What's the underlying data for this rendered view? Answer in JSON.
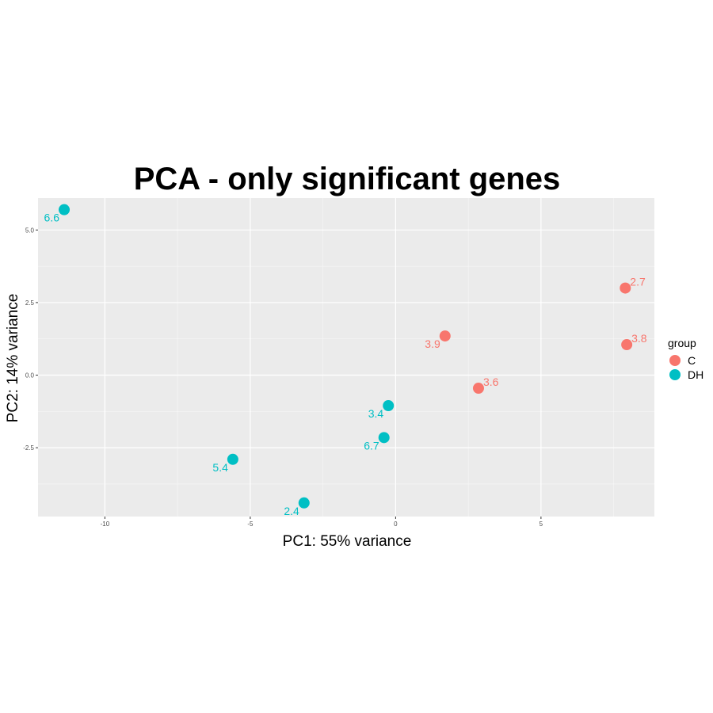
{
  "chart_data": {
    "type": "scatter",
    "title": "PCA - only significant genes",
    "xlabel": "PC1: 55% variance",
    "ylabel": "PC2: 14% variance",
    "xlim": [
      -12.3,
      8.9
    ],
    "ylim": [
      -4.87,
      6.1
    ],
    "x_ticks": [
      -10,
      -5,
      0,
      5
    ],
    "x_tick_labels": [
      "-10",
      "-5",
      "0",
      "5"
    ],
    "y_ticks": [
      -2.5,
      0,
      2.5,
      5
    ],
    "y_tick_labels": [
      "-2.5",
      "0.0",
      "2.5",
      "5.0"
    ],
    "grid": true,
    "legend_position": "right",
    "legend_title": "group",
    "series": [
      {
        "name": "C",
        "color": "#F8766D",
        "points": [
          {
            "x": 7.9,
            "y": 3.0,
            "label": "2.7"
          },
          {
            "x": 7.95,
            "y": 1.05,
            "label": "3.8"
          },
          {
            "x": 1.7,
            "y": 1.35,
            "label": "3.9"
          },
          {
            "x": 2.85,
            "y": -0.45,
            "label": "3.6"
          }
        ]
      },
      {
        "name": "DH",
        "color": "#00BFC4",
        "points": [
          {
            "x": -11.4,
            "y": 5.7,
            "label": "6.6"
          },
          {
            "x": -0.25,
            "y": -1.05,
            "label": "3.4"
          },
          {
            "x": -0.4,
            "y": -2.15,
            "label": "6.7"
          },
          {
            "x": -5.6,
            "y": -2.9,
            "label": "5.4"
          },
          {
            "x": -3.15,
            "y": -4.4,
            "label": "2.4"
          }
        ]
      }
    ]
  }
}
